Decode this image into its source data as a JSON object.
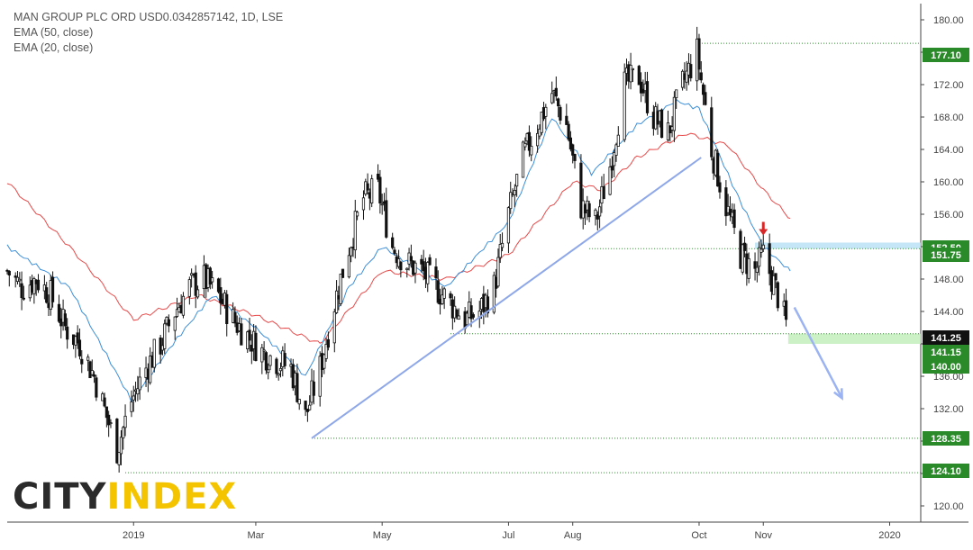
{
  "chart_data": {
    "type": "candlestick",
    "title": "MAN GROUP PLC ORD USD0.0342857142, 1D, LSE",
    "indicators": [
      {
        "name": "EMA (50, close)",
        "color": "#e84a4a"
      },
      {
        "name": "EMA (20, close)",
        "color": "#3d8fd8"
      }
    ],
    "ylim": [
      118,
      182
    ],
    "y_ticks": [
      120,
      124,
      128,
      132,
      136,
      140,
      144,
      148,
      152,
      156,
      160,
      164,
      168,
      172,
      176,
      180
    ],
    "x_labels": [
      "2019",
      "Mar",
      "May",
      "Jul",
      "Aug",
      "Oct",
      "Nov",
      "2020"
    ],
    "close_path": [
      [
        "2018-11-01",
        149
      ],
      [
        "2018-11-08",
        147
      ],
      [
        "2018-11-15",
        148
      ],
      [
        "2018-11-22",
        146
      ],
      [
        "2018-11-29",
        142
      ],
      [
        "2018-12-06",
        140
      ],
      [
        "2018-12-13",
        136
      ],
      [
        "2018-12-19",
        131
      ],
      [
        "2018-12-24",
        127
      ],
      [
        "2018-12-31",
        133
      ],
      [
        "2019-01-07",
        137
      ],
      [
        "2019-01-14",
        140
      ],
      [
        "2019-01-21",
        144
      ],
      [
        "2019-01-28",
        147
      ],
      [
        "2019-02-04",
        148
      ],
      [
        "2019-02-11",
        146
      ],
      [
        "2019-02-18",
        143
      ],
      [
        "2019-02-25",
        141
      ],
      [
        "2019-03-04",
        139
      ],
      [
        "2019-03-11",
        138
      ],
      [
        "2019-03-18",
        137
      ],
      [
        "2019-03-25",
        131
      ],
      [
        "2019-04-01",
        137
      ],
      [
        "2019-04-08",
        145
      ],
      [
        "2019-04-15",
        152
      ],
      [
        "2019-04-22",
        158
      ],
      [
        "2019-04-29",
        159
      ],
      [
        "2019-05-06",
        152
      ],
      [
        "2019-05-13",
        150
      ],
      [
        "2019-05-20",
        149
      ],
      [
        "2019-05-27",
        147
      ],
      [
        "2019-06-03",
        145
      ],
      [
        "2019-06-10",
        143
      ],
      [
        "2019-06-17",
        144
      ],
      [
        "2019-06-24",
        147
      ],
      [
        "2019-07-01",
        156
      ],
      [
        "2019-07-08",
        163
      ],
      [
        "2019-07-15",
        167
      ],
      [
        "2019-07-22",
        171
      ],
      [
        "2019-07-29",
        167
      ],
      [
        "2019-08-05",
        157
      ],
      [
        "2019-08-12",
        155
      ],
      [
        "2019-08-19",
        162
      ],
      [
        "2019-08-26",
        172
      ],
      [
        "2019-09-02",
        173
      ],
      [
        "2019-09-09",
        168
      ],
      [
        "2019-09-16",
        166
      ],
      [
        "2019-09-23",
        172
      ],
      [
        "2019-09-30",
        176
      ],
      [
        "2019-10-07",
        164
      ],
      [
        "2019-10-14",
        157
      ],
      [
        "2019-10-21",
        151
      ],
      [
        "2019-10-28",
        149
      ],
      [
        "2019-11-01",
        151
      ],
      [
        "2019-11-08",
        146
      ],
      [
        "2019-11-13",
        141.5
      ]
    ],
    "ema50_path": [
      [
        "2018-11-01",
        160
      ],
      [
        "2018-12-01",
        152
      ],
      [
        "2019-01-01",
        143
      ],
      [
        "2019-02-01",
        146
      ],
      [
        "2019-03-01",
        143.5
      ],
      [
        "2019-04-01",
        140
      ],
      [
        "2019-05-01",
        149
      ],
      [
        "2019-06-01",
        148
      ],
      [
        "2019-07-01",
        151
      ],
      [
        "2019-08-01",
        160
      ],
      [
        "2019-08-15",
        159
      ],
      [
        "2019-09-01",
        163
      ],
      [
        "2019-09-25",
        166
      ],
      [
        "2019-10-15",
        164.5
      ],
      [
        "2019-11-01",
        159
      ],
      [
        "2019-11-14",
        155.5
      ]
    ],
    "ema20_path": [
      [
        "2018-11-01",
        152
      ],
      [
        "2018-12-01",
        147
      ],
      [
        "2018-12-31",
        133
      ],
      [
        "2019-01-20",
        140
      ],
      [
        "2019-02-08",
        146
      ],
      [
        "2019-03-01",
        142
      ],
      [
        "2019-03-25",
        136
      ],
      [
        "2019-04-15",
        147
      ],
      [
        "2019-05-01",
        152
      ],
      [
        "2019-06-01",
        147
      ],
      [
        "2019-07-01",
        155
      ],
      [
        "2019-07-22",
        168
      ],
      [
        "2019-08-10",
        161
      ],
      [
        "2019-09-01",
        167
      ],
      [
        "2019-09-20",
        170
      ],
      [
        "2019-10-01",
        169
      ],
      [
        "2019-10-20",
        158
      ],
      [
        "2019-11-01",
        152
      ],
      [
        "2019-11-14",
        149
      ]
    ],
    "trendline": {
      "from": [
        "2019-03-28",
        128.35
      ],
      "to": [
        "2019-10-02",
        163
      ],
      "color": "#8fa8e8"
    },
    "levels": [
      {
        "value": 177.1,
        "label": "177.10",
        "from": "2019-10-01",
        "color": "#2a8a2a",
        "bg": "#2a8a2a",
        "fg": "#ffffff"
      },
      {
        "value": 152.5,
        "label": "152.50",
        "from": "2019-08-09",
        "color": "#2a8a2a",
        "bg": "#2a8a2a",
        "fg": "#ffffff"
      },
      {
        "value": 151.75,
        "label": "151.75",
        "from": "2019-08-09",
        "color": "#2a8a2a",
        "bg": "#2a8a2a",
        "fg": "#ffffff"
      },
      {
        "value": 141.25,
        "label": "141.25",
        "from": "2019-06-03",
        "color": "#2a8a2a",
        "bg": "#111111",
        "fg": "#ffffff"
      },
      {
        "value": 141.15,
        "label": "141.15",
        "from": "2019-06-03",
        "color": "#2a8a2a",
        "bg": "#2a8a2a",
        "fg": "#ffffff"
      },
      {
        "value": 140.0,
        "label": "140.00",
        "from": "2019-06-03",
        "color": "#2a8a2a",
        "bg": "#2a8a2a",
        "fg": "#ffffff"
      },
      {
        "value": 128.35,
        "label": "128.35",
        "from": "2019-03-28",
        "color": "#2a8a2a",
        "bg": "#2a8a2a",
        "fg": "#ffffff"
      },
      {
        "value": 124.1,
        "label": "124.10",
        "from": "2018-12-28",
        "color": "#2a8a2a",
        "bg": "#2a8a2a",
        "fg": "#ffffff"
      }
    ],
    "zones": [
      {
        "from_date": "2019-10-28",
        "low": 151.75,
        "high": 152.5,
        "color": "#bfe3f5"
      },
      {
        "from_date": "2019-11-13",
        "low": 140.0,
        "high": 141.25,
        "color": "#c6efc0"
      }
    ],
    "annotations": [
      {
        "type": "arrow-down",
        "date": "2019-11-01",
        "value": 153.5,
        "color": "#d62828"
      },
      {
        "type": "projection-arrow",
        "from": [
          "2019-11-16",
          144.5
        ],
        "to": [
          "2019-12-09",
          133.3
        ],
        "color": "#9bb3f2"
      }
    ]
  },
  "logo": {
    "city": "CITY",
    "index": "INDEX"
  }
}
